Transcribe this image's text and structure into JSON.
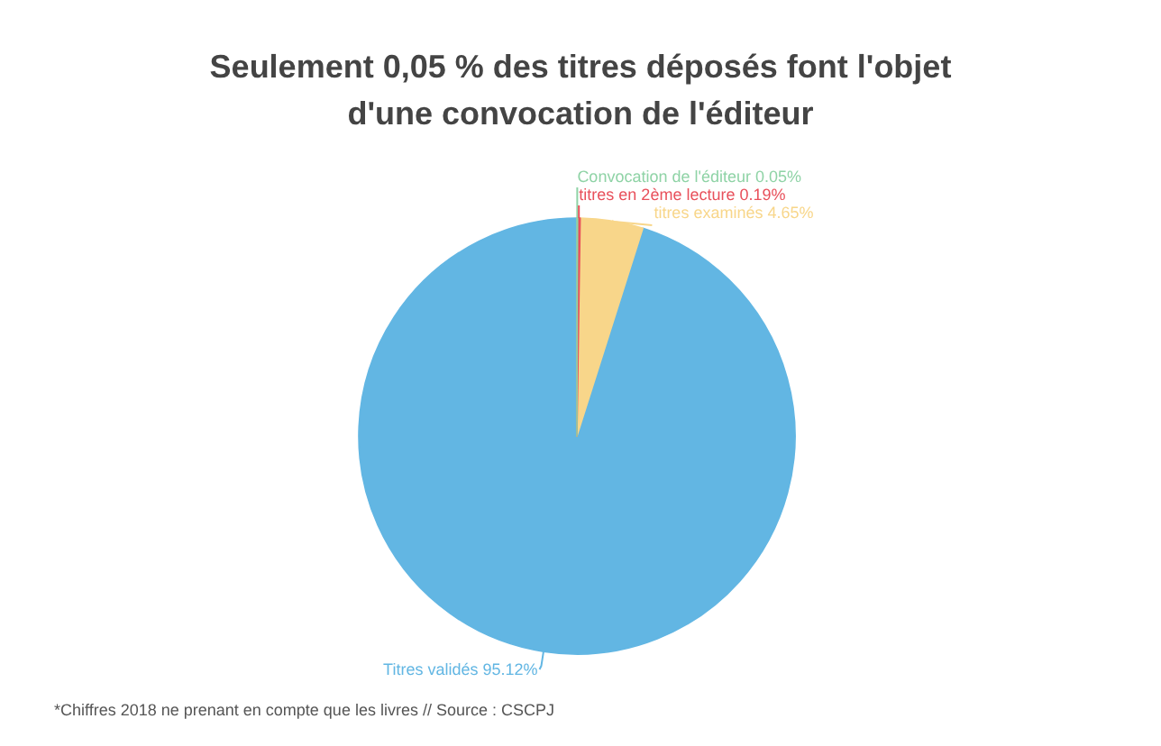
{
  "chart_data": {
    "type": "pie",
    "title": "Seulement 0,05 % des titres déposés font l'objet\nd'une convocation de l'éditeur",
    "categories": [
      "Convocation de l'éditeur",
      "titres en 2ème lecture",
      "titres examinés",
      "Titres validés"
    ],
    "values": [
      0.05,
      0.19,
      4.65,
      95.12
    ],
    "value_labels": [
      "0.05%",
      "0.19%",
      "4.65%",
      "95.12%"
    ],
    "colors": [
      "#8fd3a6",
      "#e8505b",
      "#f8d68a",
      "#62b6e3"
    ],
    "annotations": [
      "*Chiffres 2018 ne prenant en compte que les livres // Source : CSCPJ"
    ]
  }
}
